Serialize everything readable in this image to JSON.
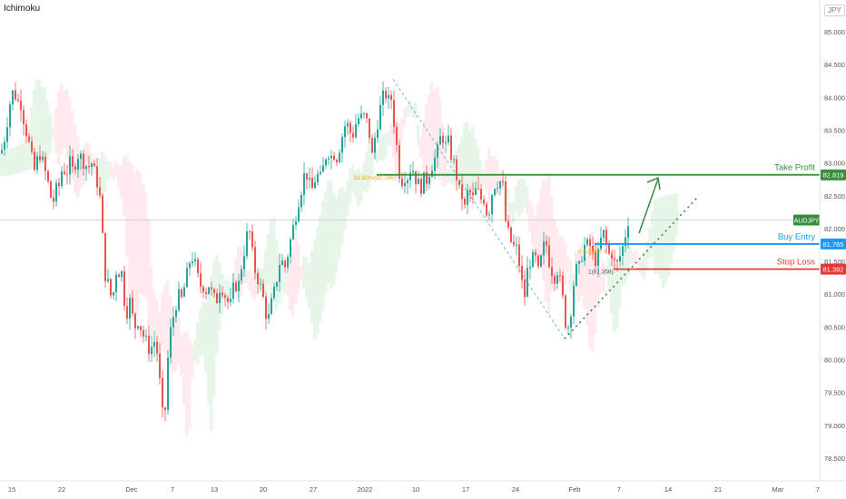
{
  "indicator_label": "Ichimoku",
  "currency_badge": "JPY",
  "colors": {
    "bull": "#26a69a",
    "bear": "#ef5350",
    "green": "#388e3c",
    "blue": "#2196f3",
    "red": "#e53935",
    "orange": "#f5a623",
    "cloud_bull": "#e8f5e9",
    "cloud_bear": "#ffebee"
  },
  "chart_data": {
    "type": "candlestick",
    "symbol_label": "AUDJPY",
    "y_ticks": [
      "85.000",
      "84.500",
      "84.000",
      "83.500",
      "83.000",
      "82.500",
      "82.000",
      "81.500",
      "81.000",
      "80.500",
      "80.000",
      "79.500",
      "79.000",
      "78.500"
    ],
    "y_range": [
      78.28,
      85.35
    ],
    "x_ticks": [
      "15",
      "22",
      "Dec",
      "7",
      "13",
      "20",
      "27",
      "2022",
      "10",
      "17",
      "24",
      "Feb",
      "7",
      "14",
      "21",
      "Mar",
      "7"
    ],
    "levels": [
      {
        "name": "Take Profit",
        "value": "82.819",
        "price": 82.819,
        "color": "#388e3c"
      },
      {
        "name": "Buy Entry",
        "value": "81.765",
        "price": 81.765,
        "color": "#2196f3"
      },
      {
        "name": "Stop Loss",
        "value": "81.382",
        "price": 81.382,
        "color": "#e53935"
      }
    ],
    "fib_labels": [
      {
        "text": "61.80%(82.786)",
        "price": 82.786
      },
      {
        "text": "0.618(81.7...)",
        "price": 81.66
      },
      {
        "text": "1(81.358)",
        "price": 81.358
      }
    ],
    "current_price_level": 82.13,
    "price_path": [
      [
        0,
        83.15
      ],
      [
        3,
        83.3
      ],
      [
        6,
        83.55
      ],
      [
        9,
        83.85
      ],
      [
        12,
        84.05
      ],
      [
        15,
        84.1
      ],
      [
        18,
        83.9
      ],
      [
        21,
        84.0
      ],
      [
        24,
        83.75
      ],
      [
        27,
        83.55
      ],
      [
        30,
        83.35
      ],
      [
        33,
        83.15
      ],
      [
        36,
        82.85
      ],
      [
        39,
        82.95
      ],
      [
        42,
        83.2
      ],
      [
        45,
        83.05
      ],
      [
        48,
        82.9
      ],
      [
        51,
        82.75
      ],
      [
        54,
        82.55
      ],
      [
        57,
        82.35
      ],
      [
        60,
        82.6
      ],
      [
        63,
        82.55
      ],
      [
        66,
        82.85
      ],
      [
        69,
        82.95
      ],
      [
        72,
        82.8
      ],
      [
        75,
        83.05
      ],
      [
        78,
        82.85
      ],
      [
        81,
        82.95
      ],
      [
        84,
        83.15
      ],
      [
        87,
        83.1
      ],
      [
        90,
        83.05
      ],
      [
        93,
        83.0
      ],
      [
        96,
        82.9
      ],
      [
        99,
        83.05
      ],
      [
        102,
        82.9
      ],
      [
        105,
        82.75
      ],
      [
        108,
        82.65
      ],
      [
        111,
        82.1
      ],
      [
        114,
        81.35
      ],
      [
        117,
        81.2
      ],
      [
        120,
        81.05
      ],
      [
        123,
        80.85
      ],
      [
        126,
        81.4
      ],
      [
        129,
        81.3
      ],
      [
        132,
        81.45
      ],
      [
        135,
        81.05
      ],
      [
        138,
        80.65
      ],
      [
        141,
        80.95
      ],
      [
        144,
        80.75
      ],
      [
        147,
        80.45
      ],
      [
        150,
        80.65
      ],
      [
        153,
        80.55
      ],
      [
        156,
        80.4
      ],
      [
        159,
        80.3
      ],
      [
        162,
        80.2
      ],
      [
        165,
        80.15
      ],
      [
        168,
        80.3
      ],
      [
        171,
        80.25
      ],
      [
        174,
        79.85
      ],
      [
        177,
        79.25
      ],
      [
        180,
        78.95
      ],
      [
        183,
        79.85
      ],
      [
        186,
        80.35
      ],
      [
        189,
        80.6
      ],
      [
        192,
        80.8
      ],
      [
        195,
        81.0
      ],
      [
        198,
        80.85
      ],
      [
        201,
        81.05
      ],
      [
        204,
        81.2
      ],
      [
        207,
        81.45
      ],
      [
        210,
        81.6
      ],
      [
        213,
        81.5
      ],
      [
        216,
        81.3
      ],
      [
        219,
        81.1
      ],
      [
        222,
        81.2
      ],
      [
        225,
        81.0
      ],
      [
        228,
        81.2
      ],
      [
        231,
        81.05
      ],
      [
        234,
        80.95
      ],
      [
        237,
        80.85
      ],
      [
        240,
        81.1
      ],
      [
        243,
        81.15
      ],
      [
        246,
        81.0
      ],
      [
        249,
        80.95
      ],
      [
        252,
        80.75
      ],
      [
        255,
        81.0
      ],
      [
        258,
        81.2
      ],
      [
        261,
        81.05
      ],
      [
        264,
        81.35
      ],
      [
        267,
        81.6
      ],
      [
        270,
        81.8
      ],
      [
        273,
        82.05
      ],
      [
        276,
        81.7
      ],
      [
        279,
        81.4
      ],
      [
        282,
        81.3
      ],
      [
        285,
        81.15
      ],
      [
        288,
        81.0
      ],
      [
        291,
        80.8
      ],
      [
        294,
        80.55
      ],
      [
        297,
        80.8
      ],
      [
        300,
        80.95
      ],
      [
        303,
        81.15
      ],
      [
        306,
        81.45
      ],
      [
        309,
        81.55
      ],
      [
        312,
        81.35
      ],
      [
        315,
        81.55
      ],
      [
        318,
        81.75
      ],
      [
        321,
        81.95
      ],
      [
        324,
        82.15
      ],
      [
        327,
        82.4
      ],
      [
        330,
        82.55
      ],
      [
        333,
        82.75
      ],
      [
        336,
        82.9
      ],
      [
        339,
        82.7
      ],
      [
        342,
        82.55
      ],
      [
        345,
        82.7
      ],
      [
        348,
        82.85
      ],
      [
        351,
        82.7
      ],
      [
        354,
        82.85
      ],
      [
        357,
        83.05
      ],
      [
        360,
        83.25
      ],
      [
        363,
        83.05
      ],
      [
        366,
        83.2
      ],
      [
        369,
        83.05
      ],
      [
        372,
        83.2
      ],
      [
        375,
        83.35
      ],
      [
        378,
        83.55
      ],
      [
        381,
        83.6
      ],
      [
        384,
        83.5
      ],
      [
        387,
        83.4
      ],
      [
        390,
        83.55
      ],
      [
        393,
        83.7
      ],
      [
        396,
        83.65
      ],
      [
        399,
        83.75
      ],
      [
        402,
        83.6
      ],
      [
        405,
        83.65
      ],
      [
        408,
        83.0
      ],
      [
        411,
        83.3
      ],
      [
        414,
        83.55
      ],
      [
        417,
        83.8
      ],
      [
        420,
        83.9
      ],
      [
        423,
        84.15
      ],
      [
        426,
        83.85
      ],
      [
        429,
        84.1
      ],
      [
        432,
        83.75
      ],
      [
        435,
        83.4
      ],
      [
        438,
        82.95
      ],
      [
        441,
        82.7
      ],
      [
        444,
        82.85
      ],
      [
        447,
        82.75
      ],
      [
        450,
        82.9
      ],
      [
        453,
        82.95
      ],
      [
        456,
        82.8
      ],
      [
        459,
        82.7
      ],
      [
        462,
        82.6
      ],
      [
        465,
        82.75
      ],
      [
        468,
        82.7
      ],
      [
        471,
        82.85
      ],
      [
        474,
        82.95
      ],
      [
        477,
        83.05
      ],
      [
        480,
        83.1
      ],
      [
        483,
        83.3
      ],
      [
        486,
        83.5
      ],
      [
        489,
        83.2
      ],
      [
        492,
        83.35
      ],
      [
        495,
        83.2
      ],
      [
        498,
        83.0
      ],
      [
        501,
        82.95
      ],
      [
        504,
        82.5
      ],
      [
        507,
        82.65
      ],
      [
        510,
        82.2
      ],
      [
        513,
        82.5
      ],
      [
        516,
        82.6
      ],
      [
        519,
        82.4
      ],
      [
        522,
        82.55
      ],
      [
        525,
        82.6
      ],
      [
        528,
        82.4
      ],
      [
        531,
        82.55
      ],
      [
        534,
        82.3
      ],
      [
        537,
        82.2
      ],
      [
        540,
        82.5
      ],
      [
        543,
        82.65
      ],
      [
        546,
        82.75
      ],
      [
        549,
        82.65
      ],
      [
        552,
        82.85
      ],
      [
        555,
        82.2
      ],
      [
        558,
        81.95
      ],
      [
        561,
        81.85
      ],
      [
        564,
        81.7
      ],
      [
        567,
        81.75
      ],
      [
        570,
        81.55
      ],
      [
        573,
        81.3
      ],
      [
        576,
        80.85
      ],
      [
        579,
        81.25
      ],
      [
        582,
        81.55
      ],
      [
        585,
        81.45
      ],
      [
        588,
        81.65
      ],
      [
        591,
        81.25
      ],
      [
        594,
        81.45
      ],
      [
        597,
        81.65
      ],
      [
        600,
        81.85
      ],
      [
        603,
        81.55
      ],
      [
        606,
        81.45
      ],
      [
        609,
        81.2
      ],
      [
        612,
        81.45
      ],
      [
        615,
        81.25
      ],
      [
        618,
        81.05
      ],
      [
        621,
        80.65
      ],
      [
        624,
        80.45
      ],
      [
        627,
        80.65
      ],
      [
        630,
        81.05
      ],
      [
        633,
        81.4
      ],
      [
        636,
        81.3
      ],
      [
        639,
        81.55
      ],
      [
        642,
        81.75
      ],
      [
        645,
        81.7
      ],
      [
        648,
        81.8
      ],
      [
        651,
        81.6
      ],
      [
        654,
        81.55
      ],
      [
        657,
        81.5
      ],
      [
        660,
        81.75
      ],
      [
        663,
        81.95
      ],
      [
        666,
        81.85
      ],
      [
        669,
        81.55
      ],
      [
        672,
        81.7
      ],
      [
        675,
        81.5
      ],
      [
        678,
        81.4
      ],
      [
        681,
        81.55
      ],
      [
        684,
        81.65
      ],
      [
        687,
        81.85
      ],
      [
        690,
        82.05
      ],
      [
        693,
        82.3
      ]
    ]
  }
}
